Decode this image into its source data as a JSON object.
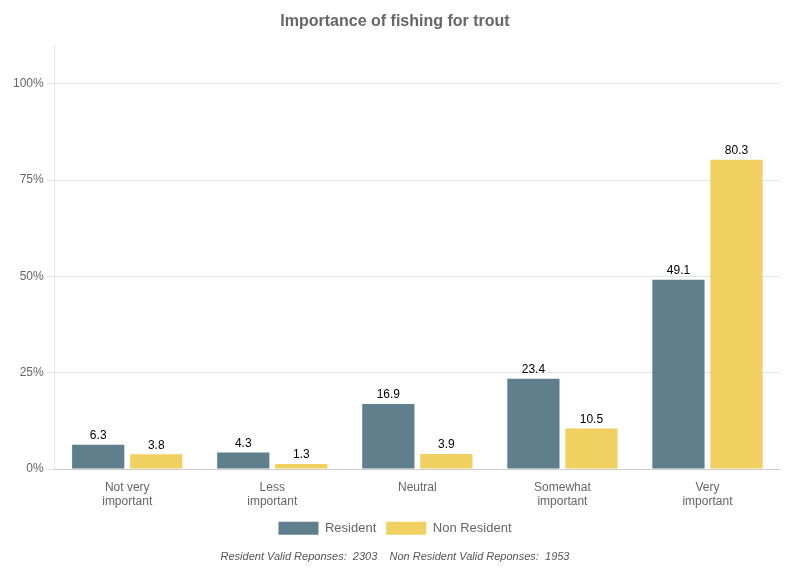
{
  "chart_data": {
    "type": "bar",
    "title": "Importance of fishing for trout",
    "categories": [
      "Not very\nimportant",
      "Less\nimportant",
      "Neutral",
      "Somewhat\nimportant",
      "Very\nimportant"
    ],
    "series": [
      {
        "name": "Resident",
        "color": "#5f7f8d",
        "values": [
          6.3,
          4.3,
          16.9,
          23.4,
          49.1
        ]
      },
      {
        "name": "Non Resident",
        "color": "#f0d060",
        "values": [
          3.8,
          1.3,
          3.9,
          10.5,
          80.3
        ]
      }
    ],
    "ylim": [
      0,
      110
    ],
    "yticks": [
      {
        "value": 0,
        "label": "0%"
      },
      {
        "value": 25,
        "label": "25%"
      },
      {
        "value": 50,
        "label": "50%"
      },
      {
        "value": 75,
        "label": "75%"
      },
      {
        "value": 100,
        "label": "100%"
      }
    ],
    "grid": true,
    "legend": "bottom",
    "data_labels": true,
    "footnote": "Resident Valid Reponses:  2303    Non Resident Valid Reponses:  1953"
  }
}
